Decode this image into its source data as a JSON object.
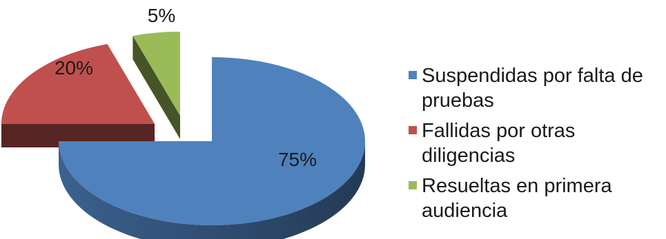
{
  "chart_data": {
    "type": "pie",
    "title": "",
    "categories": [
      "Suspendidas por falta de pruebas",
      "Fallidas por otras diligencias",
      "Resueltas en primera audiencia"
    ],
    "values": [
      75,
      20,
      5
    ],
    "labels": [
      "75%",
      "20%",
      "5%"
    ],
    "colors": [
      "#4f81bd",
      "#c0504d",
      "#9bbb59"
    ],
    "legend_position": "right",
    "style": "3d-exploded"
  }
}
